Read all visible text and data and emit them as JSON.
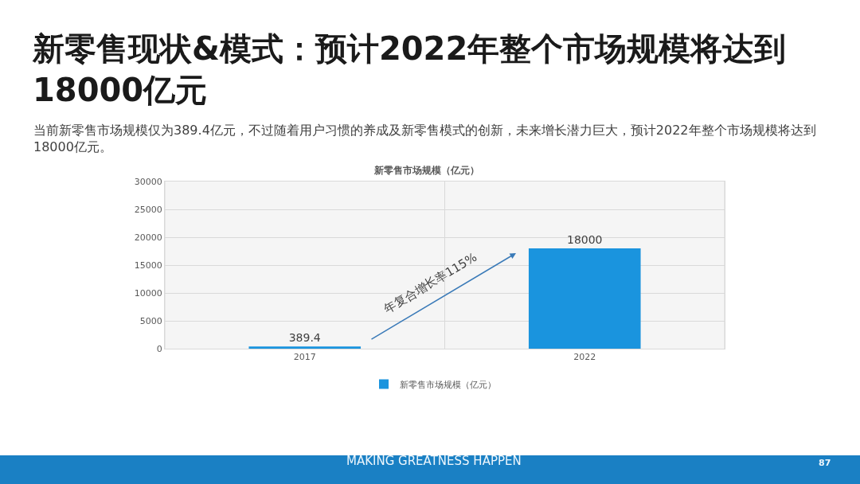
{
  "chart_data": {
    "type": "bar",
    "title": "新零售现状&模式：预计2022年整个市场规模将达到18000亿元",
    "subtitle": "当前新零售市场规模仅为389.4亿元，不过随着用户习惯的养成及新零售模式的创新，未来增长潜力巨大，预计2022年整个市场规模将达到18000亿元。",
    "annotations": [
      "新零售市场规模（亿元）",
      "年复合增长率115%",
      "MAKING GREATNESS HAPPEN",
      "87"
    ],
    "categories": [
      "2017",
      "2022"
    ],
    "series": [
      {
        "name": "新零售市场规模（亿元）",
        "color": "#1a94de",
        "values": [
          389.4,
          18000
        ]
      }
    ],
    "ylim": [
      0,
      30000
    ],
    "yticks": [
      0,
      5000,
      10000,
      15000,
      20000,
      25000,
      30000
    ],
    "grid": true,
    "legend": "bottom",
    "data_labels": true
  }
}
